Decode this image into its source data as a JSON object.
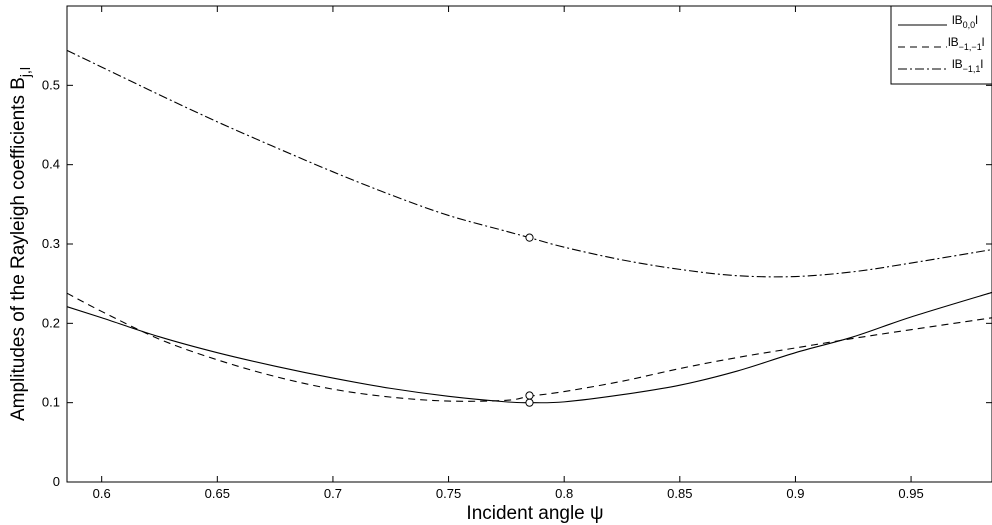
{
  "chart_data": {
    "type": "line",
    "xlabel_main": "Incident angle ",
    "xlabel_symbol": "ψ",
    "ylabel_main": "Amplitudes of the Rayleigh coefficients B",
    "ylabel_sub": "j,l",
    "xlim": [
      0.585,
      0.985
    ],
    "ylim": [
      0,
      0.6
    ],
    "xticks": [
      0.6,
      0.65,
      0.7,
      0.75,
      0.8,
      0.85,
      0.9,
      0.95
    ],
    "xtick_labels": [
      "0.6",
      "0.65",
      "0.7",
      "0.75",
      "0.8",
      "0.85",
      "0.9",
      "0.95"
    ],
    "yticks": [
      0,
      0.1,
      0.2,
      0.3,
      0.4,
      0.5
    ],
    "ytick_labels": [
      "0",
      "0.1",
      "0.2",
      "0.3",
      "0.4",
      "0.5"
    ],
    "grid": false,
    "legend_position": "top-right",
    "series": [
      {
        "name": "|B0,0|",
        "legend_main": "lB",
        "legend_sub": "0,0",
        "legend_end": "l",
        "dash": "solid",
        "x": [
          0.585,
          0.6,
          0.625,
          0.65,
          0.675,
          0.7,
          0.725,
          0.75,
          0.775,
          0.785,
          0.8,
          0.825,
          0.85,
          0.875,
          0.9,
          0.925,
          0.95,
          0.985
        ],
        "y": [
          0.221,
          0.207,
          0.183,
          0.163,
          0.146,
          0.131,
          0.118,
          0.108,
          0.101,
          0.1,
          0.101,
          0.11,
          0.122,
          0.14,
          0.163,
          0.183,
          0.208,
          0.239
        ],
        "marker": {
          "x": 0.785,
          "y": 0.1
        }
      },
      {
        "name": "|B-1,-1|",
        "legend_main": "lB",
        "legend_sub": "−1,−1",
        "legend_end": "l",
        "dash": "dashed",
        "x": [
          0.585,
          0.6,
          0.625,
          0.65,
          0.675,
          0.7,
          0.725,
          0.75,
          0.775,
          0.785,
          0.8,
          0.825,
          0.85,
          0.875,
          0.9,
          0.925,
          0.95,
          0.985
        ],
        "y": [
          0.238,
          0.215,
          0.18,
          0.154,
          0.133,
          0.117,
          0.107,
          0.102,
          0.103,
          0.108,
          0.114,
          0.127,
          0.143,
          0.157,
          0.169,
          0.181,
          0.192,
          0.207
        ],
        "marker": {
          "x": 0.785,
          "y": 0.109
        }
      },
      {
        "name": "|B-1,1|",
        "legend_main": "lB",
        "legend_sub": "−1,1",
        "legend_end": "l",
        "dash": "dashdot",
        "x": [
          0.585,
          0.6,
          0.625,
          0.65,
          0.675,
          0.7,
          0.725,
          0.75,
          0.775,
          0.785,
          0.8,
          0.825,
          0.85,
          0.875,
          0.9,
          0.925,
          0.95,
          0.985
        ],
        "y": [
          0.544,
          0.523,
          0.488,
          0.454,
          0.422,
          0.391,
          0.362,
          0.336,
          0.316,
          0.308,
          0.296,
          0.28,
          0.268,
          0.26,
          0.259,
          0.265,
          0.276,
          0.293
        ],
        "marker": {
          "x": 0.785,
          "y": 0.308
        }
      }
    ]
  }
}
